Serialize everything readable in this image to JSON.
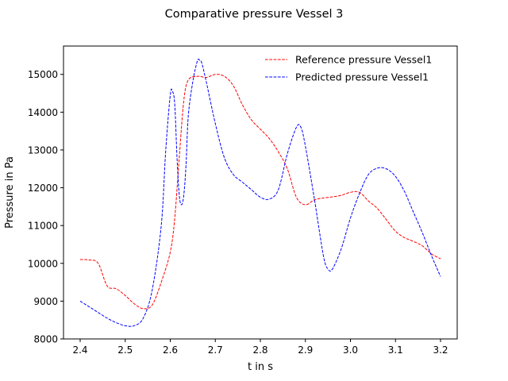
{
  "chart_data": {
    "type": "line",
    "title": "Comparative pressure Vessel 3",
    "xlabel": "t in s",
    "ylabel": "Pressure in Pa",
    "xlim": [
      2.363,
      3.237
    ],
    "ylim": [
      8000,
      15750
    ],
    "xticks": [
      2.4,
      2.5,
      2.6,
      2.7,
      2.8,
      2.9,
      3.0,
      3.1,
      3.2
    ],
    "xtick_labels": [
      "2.4",
      "2.5",
      "2.6",
      "2.7",
      "2.8",
      "2.9",
      "3.0",
      "3.1",
      "3.2"
    ],
    "yticks": [
      8000,
      9000,
      10000,
      11000,
      12000,
      13000,
      14000,
      15000
    ],
    "ytick_labels": [
      "8000",
      "9000",
      "10000",
      "11000",
      "12000",
      "13000",
      "14000",
      "15000"
    ],
    "grid": false,
    "legend_position": "top-right",
    "series": [
      {
        "name": "Reference pressure Vessel1",
        "color": "#ff0000",
        "dash": "dashed",
        "points": [
          [
            2.4,
            10100
          ],
          [
            2.42,
            10090
          ],
          [
            2.44,
            10000
          ],
          [
            2.46,
            9400
          ],
          [
            2.48,
            9330
          ],
          [
            2.5,
            9150
          ],
          [
            2.52,
            8930
          ],
          [
            2.54,
            8800
          ],
          [
            2.56,
            8900
          ],
          [
            2.58,
            9500
          ],
          [
            2.6,
            10300
          ],
          [
            2.61,
            11200
          ],
          [
            2.62,
            12800
          ],
          [
            2.63,
            14300
          ],
          [
            2.64,
            14850
          ],
          [
            2.66,
            14950
          ],
          [
            2.68,
            14920
          ],
          [
            2.7,
            15000
          ],
          [
            2.72,
            14950
          ],
          [
            2.74,
            14700
          ],
          [
            2.76,
            14200
          ],
          [
            2.78,
            13800
          ],
          [
            2.8,
            13550
          ],
          [
            2.82,
            13300
          ],
          [
            2.84,
            12950
          ],
          [
            2.86,
            12500
          ],
          [
            2.88,
            11750
          ],
          [
            2.9,
            11550
          ],
          [
            2.92,
            11680
          ],
          [
            2.94,
            11730
          ],
          [
            2.96,
            11760
          ],
          [
            2.98,
            11800
          ],
          [
            3.0,
            11880
          ],
          [
            3.02,
            11880
          ],
          [
            3.04,
            11650
          ],
          [
            3.06,
            11450
          ],
          [
            3.08,
            11150
          ],
          [
            3.1,
            10850
          ],
          [
            3.12,
            10680
          ],
          [
            3.14,
            10580
          ],
          [
            3.16,
            10460
          ],
          [
            3.18,
            10250
          ],
          [
            3.2,
            10120
          ]
        ]
      },
      {
        "name": "Predicted pressure Vessel1",
        "color": "#0000ff",
        "dash": "dashed",
        "points": [
          [
            2.4,
            9000
          ],
          [
            2.42,
            8850
          ],
          [
            2.44,
            8700
          ],
          [
            2.46,
            8550
          ],
          [
            2.48,
            8430
          ],
          [
            2.5,
            8350
          ],
          [
            2.52,
            8350
          ],
          [
            2.54,
            8550
          ],
          [
            2.56,
            9300
          ],
          [
            2.58,
            11000
          ],
          [
            2.59,
            13000
          ],
          [
            2.6,
            14450
          ],
          [
            2.605,
            14550
          ],
          [
            2.61,
            14200
          ],
          [
            2.615,
            12800
          ],
          [
            2.62,
            11800
          ],
          [
            2.625,
            11550
          ],
          [
            2.63,
            11800
          ],
          [
            2.635,
            12600
          ],
          [
            2.64,
            13900
          ],
          [
            2.65,
            14800
          ],
          [
            2.66,
            15350
          ],
          [
            2.665,
            15380
          ],
          [
            2.67,
            15300
          ],
          [
            2.68,
            14800
          ],
          [
            2.7,
            13700
          ],
          [
            2.72,
            12800
          ],
          [
            2.74,
            12350
          ],
          [
            2.76,
            12150
          ],
          [
            2.78,
            11950
          ],
          [
            2.8,
            11750
          ],
          [
            2.82,
            11700
          ],
          [
            2.84,
            11950
          ],
          [
            2.86,
            12900
          ],
          [
            2.88,
            13600
          ],
          [
            2.89,
            13600
          ],
          [
            2.9,
            13100
          ],
          [
            2.92,
            11700
          ],
          [
            2.94,
            10200
          ],
          [
            2.95,
            9850
          ],
          [
            2.96,
            9850
          ],
          [
            2.98,
            10400
          ],
          [
            3.0,
            11200
          ],
          [
            3.02,
            11850
          ],
          [
            3.04,
            12350
          ],
          [
            3.06,
            12520
          ],
          [
            3.08,
            12500
          ],
          [
            3.1,
            12300
          ],
          [
            3.12,
            11900
          ],
          [
            3.14,
            11350
          ],
          [
            3.16,
            10800
          ],
          [
            3.18,
            10200
          ],
          [
            3.2,
            9650
          ]
        ]
      }
    ]
  }
}
